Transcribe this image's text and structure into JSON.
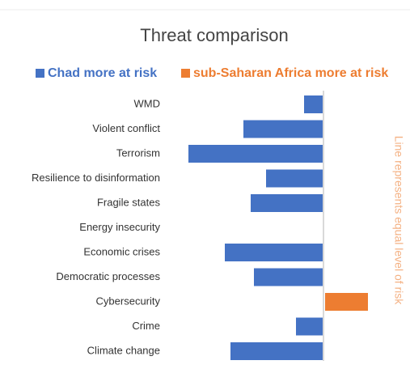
{
  "chart_data": {
    "type": "diverging-bar",
    "title": "Threat comparison",
    "categories": [
      "WMD",
      "Violent conflict",
      "Terrorism",
      "Resilience to disinformation",
      "Fragile states",
      "Energy insecurity",
      "Economic crises",
      "Democratic processes",
      "Cybersecurity",
      "Crime",
      "Climate change"
    ],
    "series": [
      {
        "name": "Chad more at risk",
        "color": "#4472c4",
        "values": [
          -0.24,
          -0.99,
          -1.67,
          -0.71,
          -0.9,
          0,
          -1.22,
          -0.86,
          null,
          -0.34,
          -1.15
        ]
      },
      {
        "name": "sub-Saharan Africa more at risk",
        "color": "#ed7d31",
        "values": [
          null,
          null,
          null,
          null,
          null,
          null,
          null,
          null,
          0.53,
          null,
          null
        ]
      }
    ],
    "xlim": [
      -1.7,
      0.6
    ],
    "annotation": "Line represents equal level of risk"
  }
}
